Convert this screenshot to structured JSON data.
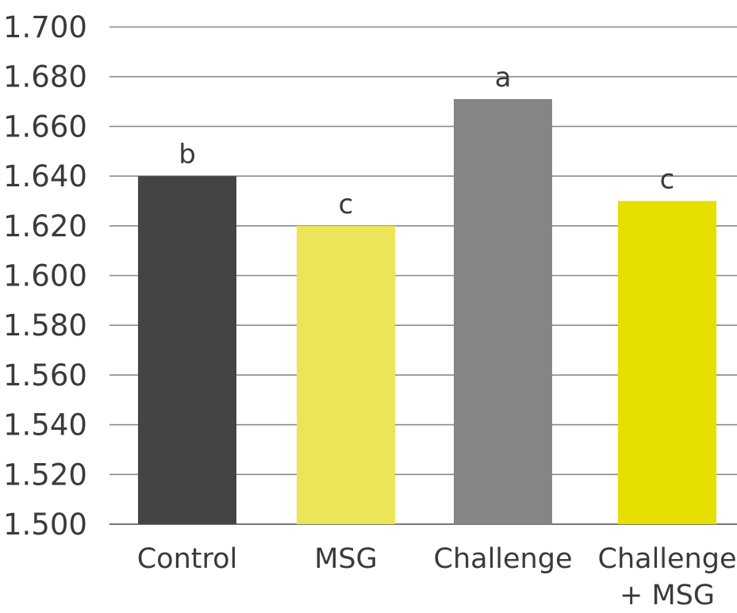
{
  "chart_data": {
    "type": "bar",
    "title": "",
    "xlabel": "",
    "ylabel": "",
    "categories": [
      [
        "Control"
      ],
      [
        "MSG"
      ],
      [
        "Challenge"
      ],
      [
        "Challenge",
        "+ MSG"
      ]
    ],
    "values": [
      1.64,
      1.62,
      1.671,
      1.63
    ],
    "data_labels": [
      "b",
      "c",
      "a",
      "c"
    ],
    "ylim": [
      1.5,
      1.7
    ],
    "yticks": [
      "1.700",
      "1.680",
      "1.660",
      "1.640",
      "1.620",
      "1.600",
      "1.580",
      "1.560",
      "1.540",
      "1.520",
      "1.500"
    ],
    "grid": true,
    "legend": "none",
    "colors": [
      "#444444",
      "#ede558",
      "#858585",
      "#e6df00"
    ]
  }
}
